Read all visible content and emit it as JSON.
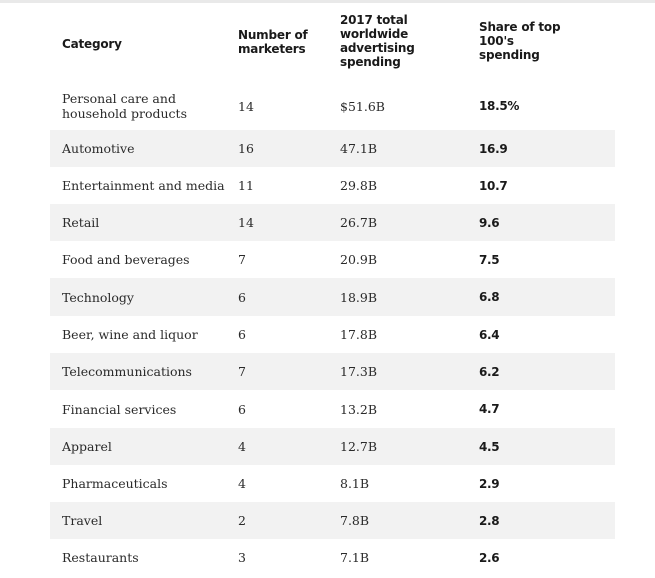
{
  "headers": {
    "category": "Category",
    "marketers": [
      "Number of",
      "marketers"
    ],
    "spending": [
      "2017 total",
      "worldwide",
      "advertising",
      "spending"
    ],
    "share": [
      "Share of top",
      "100's",
      "spending"
    ]
  },
  "rows": [
    {
      "category": [
        "Personal care and",
        "household products"
      ],
      "marketers": "14",
      "spending": "$51.6B",
      "share": "18.5%"
    },
    {
      "category": [
        "Automotive"
      ],
      "marketers": "16",
      "spending": "47.1B",
      "share": "16.9"
    },
    {
      "category": [
        "Entertainment and media"
      ],
      "marketers": "11",
      "spending": "29.8B",
      "share": "10.7"
    },
    {
      "category": [
        "Retail"
      ],
      "marketers": "14",
      "spending": "26.7B",
      "share": "9.6"
    },
    {
      "category": [
        "Food and beverages"
      ],
      "marketers": "7",
      "spending": "20.9B",
      "share": "7.5"
    },
    {
      "category": [
        "Technology"
      ],
      "marketers": "6",
      "spending": "18.9B",
      "share": "6.8"
    },
    {
      "category": [
        "Beer, wine and liquor"
      ],
      "marketers": "6",
      "spending": "17.8B",
      "share": "6.4"
    },
    {
      "category": [
        "Telecommunications"
      ],
      "marketers": "7",
      "spending": "17.3B",
      "share": "6.2"
    },
    {
      "category": [
        "Financial services"
      ],
      "marketers": "6",
      "spending": "13.2B",
      "share": "4.7"
    },
    {
      "category": [
        "Apparel"
      ],
      "marketers": "4",
      "spending": "12.7B",
      "share": "4.5"
    },
    {
      "category": [
        "Pharmaceuticals"
      ],
      "marketers": "4",
      "spending": "8.1B",
      "share": "2.9"
    },
    {
      "category": [
        "Travel"
      ],
      "marketers": "2",
      "spending": "7.8B",
      "share": "2.8"
    },
    {
      "category": [
        "Restaurants"
      ],
      "marketers": "3",
      "spending": "7.1B",
      "share": "2.6"
    }
  ]
}
